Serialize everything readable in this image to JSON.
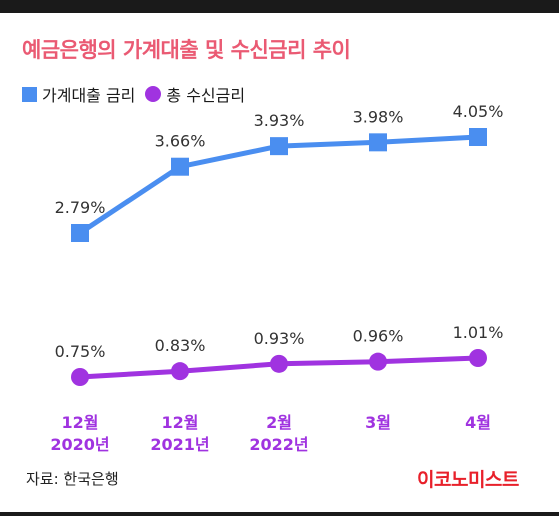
{
  "title": "예금은행의 가계대출 및 수신금리 추이",
  "legend": {
    "series1": "가계대출 금리",
    "series2": "총 수신금리"
  },
  "source": "자료: 한국은행",
  "logo": "이코노미스트",
  "colors": {
    "title": "#ea5a73",
    "series1": "#4a8ef0",
    "series2": "#a033e0",
    "label_purple": "#a033e0",
    "logo": "#e8202a"
  },
  "chart_data": {
    "type": "line",
    "title": "예금은행의 가계대출 및 수신금리 추이",
    "categories": [
      "12월\n2020년",
      "12월\n2021년",
      "2월\n2022년",
      "3월",
      "4월"
    ],
    "series": [
      {
        "name": "가계대출 금리",
        "values": [
          2.79,
          3.66,
          3.93,
          3.98,
          4.05
        ],
        "labels": [
          "2.79%",
          "3.66%",
          "3.93%",
          "3.98%",
          "4.05%"
        ]
      },
      {
        "name": "총 수신금리",
        "values": [
          0.75,
          0.83,
          0.93,
          0.96,
          1.01
        ],
        "labels": [
          "0.75%",
          "0.83%",
          "0.93%",
          "0.96%",
          "1.01%"
        ]
      }
    ],
    "grid": false,
    "legend_position": "top-left"
  }
}
